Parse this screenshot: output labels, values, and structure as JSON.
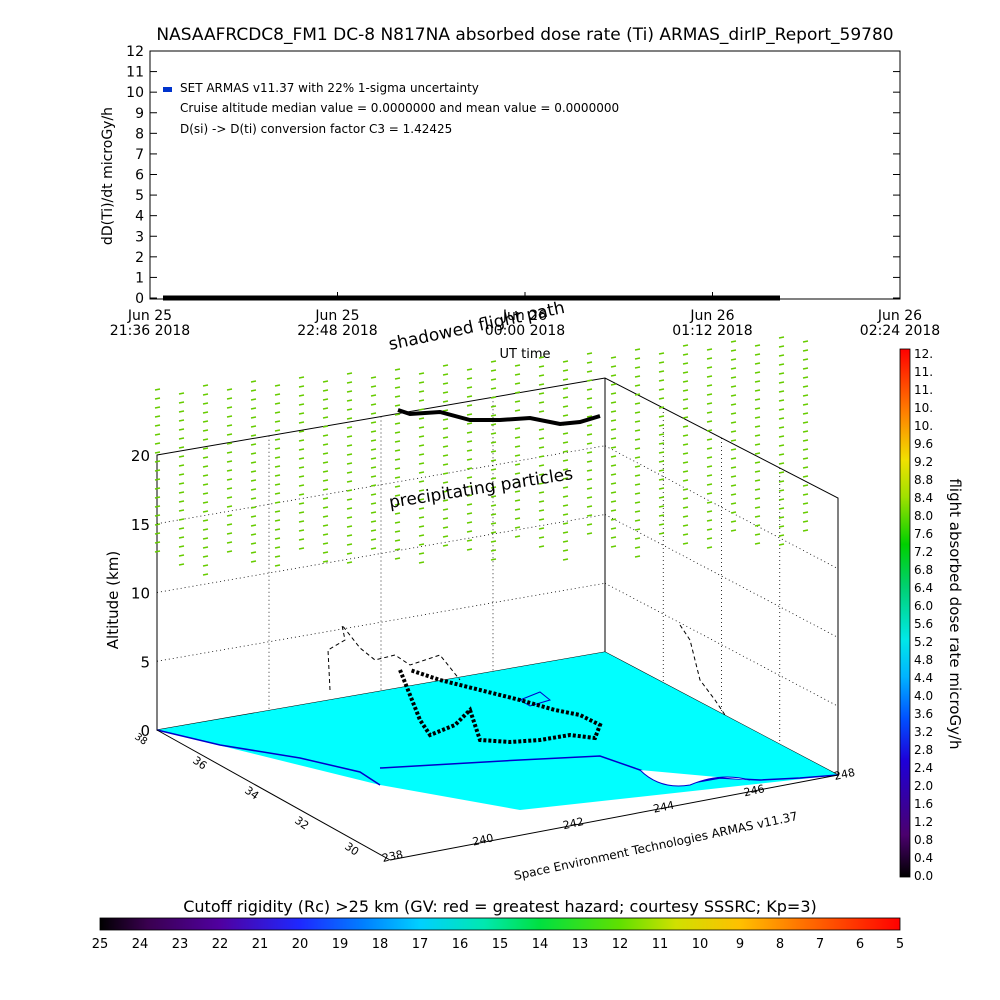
{
  "title": "NASAAFRCDC8_FM1  DC-8    N817NA absorbed dose rate (Ti) ARMAS_dirIP_Report_59780",
  "chart_data": [
    {
      "type": "line",
      "ylabel": "dD(Ti)/dt microGy/h",
      "xlabel": "UT time",
      "ylim": [
        0,
        12
      ],
      "yticks": [
        "0",
        "1",
        "2",
        "3",
        "4",
        "5",
        "6",
        "7",
        "8",
        "9",
        "10",
        "11",
        "12"
      ],
      "xticks": [
        {
          "top": "Jun 25",
          "bottom": "21:36 2018"
        },
        {
          "top": "Jun 25",
          "bottom": "22:48 2018"
        },
        {
          "top": "Jun 26",
          "bottom": "00:00 2018"
        },
        {
          "top": "Jun 26",
          "bottom": "01:12 2018"
        },
        {
          "top": "Jun 26",
          "bottom": "02:24 2018"
        }
      ],
      "legend": [
        "SET ARMAS v11.37 with 22% 1-sigma uncertainty",
        "Cruise altitude median value = 0.0000000 and mean value = 0.0000000",
        "D(si) -> D(ti) conversion factor C3 = 1.42425"
      ],
      "series": [
        {
          "name": "SET ARMAS v11.37 with 22% 1-sigma uncertainty",
          "x": [
            "21:36",
            "01:50"
          ],
          "values": [
            0,
            0
          ]
        }
      ],
      "series_color": "#0033cc"
    },
    {
      "type": "scatter",
      "zlabel": "Altitude (km)",
      "zticks": [
        "0",
        "5",
        "10",
        "15",
        "20"
      ],
      "lat_ticks": [
        "36",
        "34",
        "32",
        "30"
      ],
      "lon_ticks": [
        "238",
        "240",
        "242",
        "244",
        "246",
        "248"
      ],
      "annotations": [
        "shadowed flight path",
        "precipitating particles"
      ],
      "credit": "Space Environment Technologies ARMAS v11.37"
    },
    {
      "type": "heatmap",
      "colorbar_label": "flight absorbed dose rate microGy/h",
      "colorbar_ticks": [
        "12.",
        "11.",
        "11.",
        "10.",
        "10.",
        "9.6",
        "9.2",
        "8.8",
        "8.4",
        "8.0",
        "7.6",
        "7.2",
        "6.8",
        "6.4",
        "6.0",
        "5.6",
        "5.2",
        "4.8",
        "4.4",
        "4.0",
        "3.6",
        "3.2",
        "2.8",
        "2.4",
        "2.0",
        "1.6",
        "1.2",
        "0.8",
        "0.4",
        "0.0"
      ],
      "cutoff_title": "Cutoff rigidity (Rc) >25 km (GV: red = greatest hazard; courtesy SSSRC; Kp=3)",
      "cutoff_ticks": [
        "25",
        "24",
        "23",
        "22",
        "21",
        "20",
        "19",
        "18",
        "17",
        "16",
        "15",
        "14",
        "13",
        "12",
        "11",
        "10",
        "9",
        "8",
        "7",
        "6",
        "5"
      ]
    }
  ],
  "colors": {
    "map_fill": "#00ffff",
    "precip_marks": "#66cc00",
    "flight_path": "#000000"
  }
}
